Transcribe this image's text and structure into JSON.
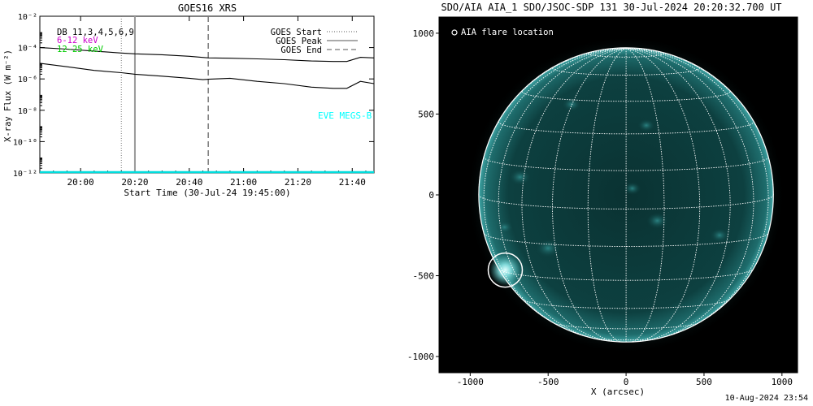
{
  "chart_data": [
    {
      "type": "line",
      "title": "GOES16 XRS",
      "xlabel": "Start Time (30-Jul-24 19:45:00)",
      "ylabel": "X-ray Flux (W m⁻²)",
      "x_ticks": [
        "20:00",
        "20:20",
        "20:40",
        "21:00",
        "21:20",
        "21:40"
      ],
      "x_tick_minutes": [
        15,
        35,
        55,
        75,
        95,
        115
      ],
      "xlim_minutes": [
        0,
        123
      ],
      "y_scale": "log",
      "ylim": [
        1e-12,
        0.01
      ],
      "y_ticks": [
        "10⁻²",
        "10⁻⁴",
        "10⁻⁶",
        "10⁻⁸",
        "10⁻¹⁰",
        "10⁻¹²"
      ],
      "y_tick_exponents": [
        -2,
        -4,
        -6,
        -8,
        -10,
        -12
      ],
      "top_left_labels": [
        {
          "text": "DB 11,3,4,5,6,9",
          "color": "#000000"
        },
        {
          "text": "6-12 keV",
          "color": "#cc00cc"
        },
        {
          "text": "12-25 keV",
          "color": "#00cc00"
        }
      ],
      "legend": [
        {
          "label": "GOES Start",
          "style": "dotted"
        },
        {
          "label": "GOES Peak",
          "style": "solid"
        },
        {
          "label": "GOES End",
          "style": "dashed"
        }
      ],
      "legend_position": "top-right",
      "markers": {
        "start_minute": 30,
        "peak_minute": 35,
        "end_minute": 62
      },
      "series": [
        {
          "color": "#000000",
          "x": [
            0,
            10,
            20,
            30,
            35,
            45,
            55,
            62,
            70,
            80,
            90,
            100,
            108,
            113,
            118,
            123
          ],
          "y": [
            0.0001,
            8e-05,
            6e-05,
            4.5e-05,
            4e-05,
            3.5e-05,
            2.8e-05,
            2.2e-05,
            2.1e-05,
            1.9e-05,
            1.7e-05,
            1.4e-05,
            1.3e-05,
            1.3e-05,
            2.4e-05,
            2.2e-05
          ]
        },
        {
          "color": "#000000",
          "x": [
            0,
            10,
            20,
            30,
            35,
            45,
            55,
            60,
            62,
            70,
            80,
            90,
            100,
            108,
            113,
            118,
            123
          ],
          "y": [
            1e-05,
            6e-06,
            3.5e-06,
            2.5e-06,
            2e-06,
            1.5e-06,
            1.1e-06,
            9e-07,
            9.5e-07,
            1.1e-06,
            7e-07,
            5e-07,
            3e-07,
            2.5e-07,
            2.5e-07,
            7e-07,
            5e-07
          ]
        },
        {
          "color": "#00dddd",
          "x": [
            0,
            123
          ],
          "y": [
            1e-12,
            1e-12
          ]
        }
      ],
      "annotation": {
        "text": "EVE MEGS-B",
        "color": "#00ffff"
      }
    },
    {
      "type": "image",
      "title": "SDO/AIA AIA_1 SDO/JSOC-SDP 131 30-Jul-2024 20:20:32.700 UT",
      "xlabel": "X (arcsec)",
      "x_ticks": [
        -1000,
        -500,
        0,
        500,
        1000
      ],
      "y_ticks": [
        1000,
        500,
        0,
        -500,
        -1000
      ],
      "xlim": [
        -1200,
        1100
      ],
      "ylim": [
        -1100,
        1100
      ],
      "legend": [
        {
          "label": "AIA flare location",
          "symbol": "circle"
        }
      ],
      "flare_location_arcsec": [
        -775,
        -465
      ],
      "disk_radius_arcsec": 945,
      "colors": {
        "disk": "#0c3f3f",
        "limb_glow": "#3fa4a4",
        "grid": "#ffffff",
        "background": "#000000"
      }
    }
  ],
  "footer": "10-Aug-2024 23:54"
}
